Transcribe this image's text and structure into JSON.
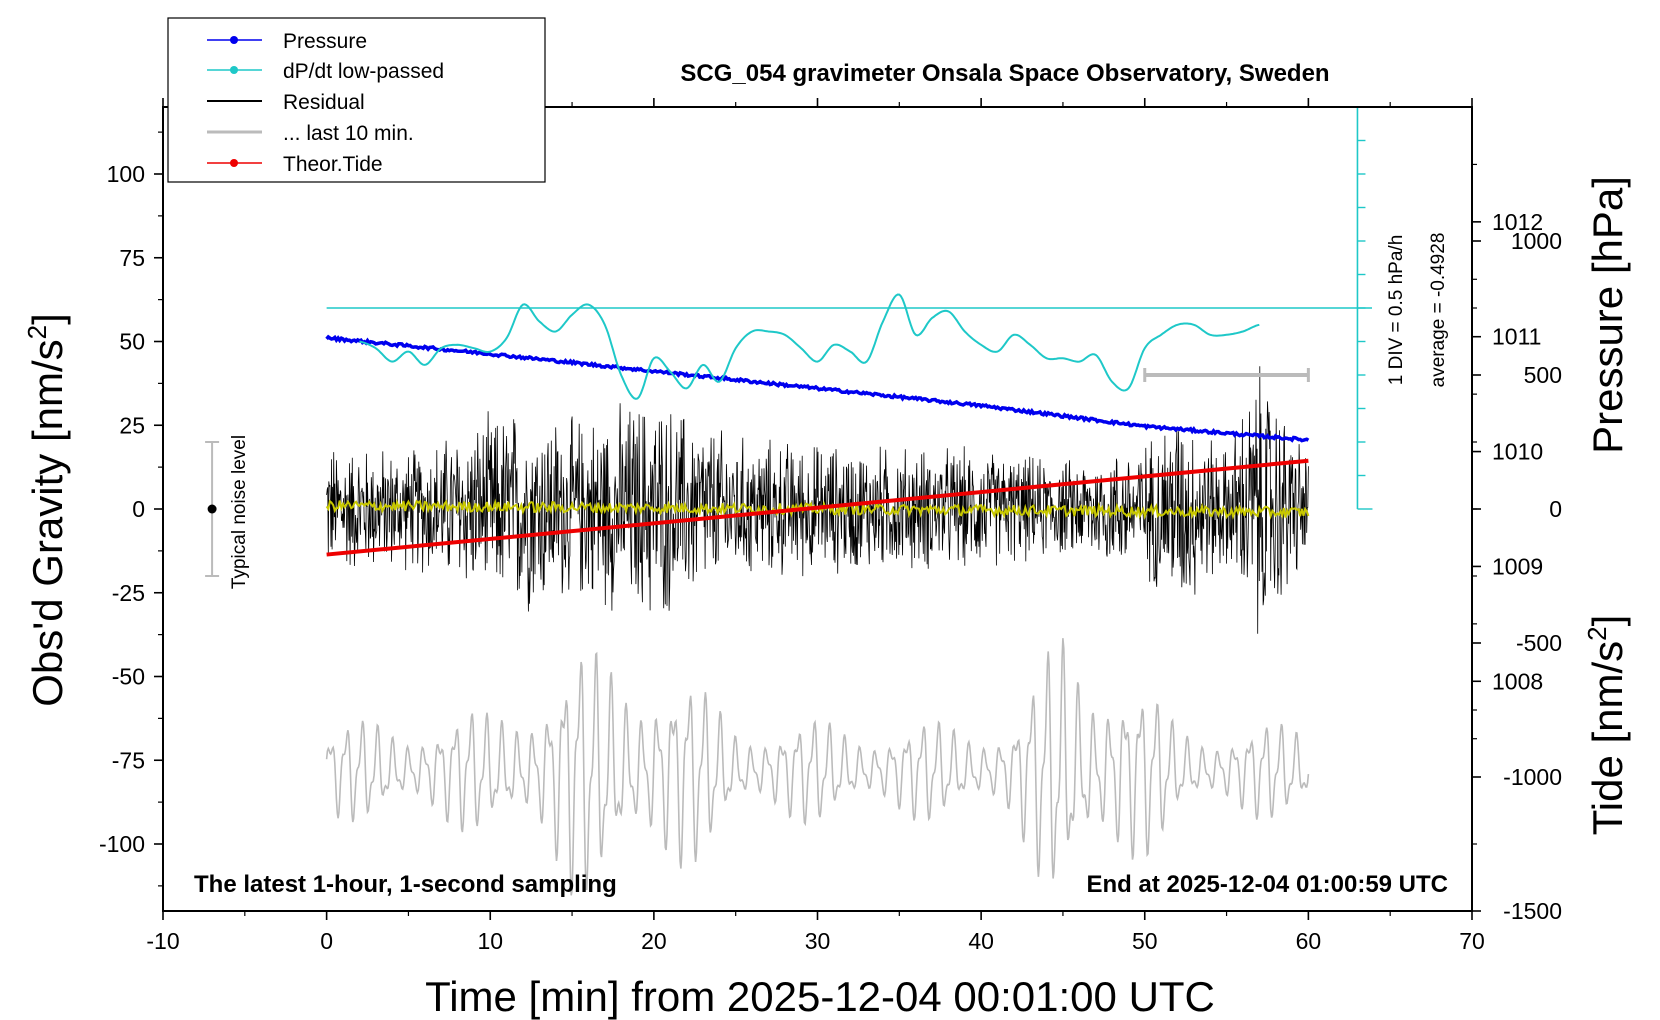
{
  "chart_data": {
    "type": "line",
    "title": "SCG_054 gravimeter Onsala Space Observatory, Sweden",
    "xlabel": "Time [min] from 2025-12-04 00:01:00 UTC",
    "ylabel": "Obs'd Gravity [nm/s",
    "ylabel_sup": "2",
    "ylabel_close": "]",
    "y2label": "Pressure [hPa]",
    "y3label": "Tide [nm/s",
    "y3label_sup": "2",
    "y3label_close": "]",
    "xlim": [
      -10,
      70
    ],
    "ylim": [
      -120,
      120
    ],
    "y2lim": [
      1006.0,
      1013.0
    ],
    "y3lim": [
      -1500,
      1500
    ],
    "x_ticks": [
      -10,
      0,
      10,
      20,
      30,
      40,
      50,
      60,
      70
    ],
    "x_tick_labels": [
      "-10",
      "0",
      "10",
      "20",
      "30",
      "40",
      "50",
      "60",
      "70"
    ],
    "y_ticks": [
      100,
      75,
      50,
      25,
      0,
      -25,
      -50,
      -75,
      -100
    ],
    "y_tick_labels": [
      "100",
      "75",
      "50",
      "25",
      "0",
      "-25",
      "-50",
      "-75",
      "-100"
    ],
    "y2_ticks": [
      1012,
      1011,
      1010,
      1009,
      1008
    ],
    "y2_tick_labels": [
      "1012",
      "1011",
      "1010",
      "1009",
      "1008"
    ],
    "y3_ticks": [
      1000,
      500,
      0,
      -500,
      -1000,
      -1500
    ],
    "y3_tick_labels": [
      "1000",
      "500",
      "0",
      "-500",
      "-1000",
      "-1500"
    ],
    "legend": {
      "position": "top-left",
      "entries": [
        {
          "label": "Pressure",
          "color": "#0000ee",
          "marker": true
        },
        {
          "label": "dP/dt low-passed",
          "color": "#1ec8c8",
          "marker": true
        },
        {
          "label": "Residual",
          "color": "#000000",
          "marker": false
        },
        {
          "label": "... last 10 min.",
          "color": "#bbbbbb",
          "marker": false
        },
        {
          "label": "Theor.Tide",
          "color": "#ee0000",
          "marker": true
        }
      ]
    },
    "annotations": {
      "bottom_left": "The latest 1-hour, 1-second sampling",
      "bottom_right": "End at 2025-12-04 01:00:59 UTC",
      "noise_label": "Typical noise level",
      "noise_level": {
        "x": -7,
        "center": 0,
        "half_range": 20
      },
      "div_label": "1 DIV = 0.5 hPa/h",
      "average_label": "average = -0.4928",
      "dpdt_scale": {
        "x": 63,
        "top": 120,
        "bottom": 0,
        "reference_level": 60,
        "divisions": 12
      },
      "last10_bar": {
        "x_start": 50,
        "x_end": 60,
        "tide_value": 500
      }
    },
    "series": [
      {
        "name": "Pressure",
        "axis": "pressure",
        "color": "#0000ee",
        "x": [
          0,
          10,
          20,
          30,
          40,
          50,
          60
        ],
        "values": [
          1010.99,
          1010.85,
          1010.7,
          1010.55,
          1010.4,
          1010.22,
          1010.1
        ]
      },
      {
        "name": "dP/dt low-passed",
        "axis": "gravity",
        "color": "#1ec8c8",
        "x": [
          2,
          3,
          4,
          5,
          6,
          7,
          8,
          9,
          10,
          11,
          12,
          13,
          14,
          15,
          16,
          17,
          18,
          19,
          20,
          21,
          22,
          23,
          24,
          25,
          26,
          27,
          28,
          29,
          30,
          31,
          32,
          33,
          34,
          35,
          36,
          37,
          38,
          39,
          40,
          41,
          42,
          43,
          44,
          45,
          46,
          47,
          48,
          49,
          50,
          51,
          52,
          53,
          54,
          55,
          56,
          57
        ],
        "values": [
          50,
          48,
          44,
          47,
          43,
          48,
          49,
          48,
          47,
          51,
          61,
          56,
          53,
          58,
          61,
          55,
          40,
          33,
          45,
          41,
          36,
          43,
          38,
          48,
          53,
          53,
          52,
          48,
          44,
          49,
          47,
          44,
          56,
          64,
          52,
          57,
          59,
          53,
          49,
          47,
          52,
          49,
          45,
          45,
          44,
          46,
          38,
          36,
          48,
          52,
          55,
          55,
          52,
          52,
          53,
          55
        ]
      },
      {
        "name": "Residual",
        "axis": "gravity",
        "color": "#000000",
        "x": [
          0,
          60
        ],
        "values": [
          0,
          0
        ],
        "amplitude": [
          [
            0,
            22
          ],
          [
            5,
            20
          ],
          [
            12,
            35
          ],
          [
            15,
            30
          ],
          [
            20,
            38
          ],
          [
            25,
            24
          ],
          [
            30,
            22
          ],
          [
            40,
            20
          ],
          [
            45,
            16
          ],
          [
            50,
            22
          ],
          [
            52,
            35
          ],
          [
            55,
            20
          ],
          [
            57,
            48
          ],
          [
            60,
            18
          ]
        ]
      },
      {
        "name": "Residual (smoothed)",
        "axis": "gravity",
        "color": "#c8c800",
        "x": [
          0,
          60
        ],
        "values": [
          1,
          -1
        ]
      },
      {
        "name": "... last 10 min.",
        "axis": "gravity",
        "color": "#bbbbbb",
        "x": [
          0,
          60
        ],
        "values": [
          -78,
          -78
        ],
        "amplitude": [
          [
            0,
            14
          ],
          [
            10,
            18
          ],
          [
            15,
            36
          ],
          [
            20,
            36
          ],
          [
            25,
            16
          ],
          [
            35,
            14
          ],
          [
            42,
            16
          ],
          [
            45,
            44
          ],
          [
            48,
            36
          ],
          [
            52,
            14
          ],
          [
            60,
            14
          ]
        ]
      },
      {
        "name": "Theor.Tide",
        "axis": "tide",
        "color": "#ee0000",
        "x": [
          0,
          60
        ],
        "values": [
          -170,
          180
        ]
      }
    ]
  }
}
